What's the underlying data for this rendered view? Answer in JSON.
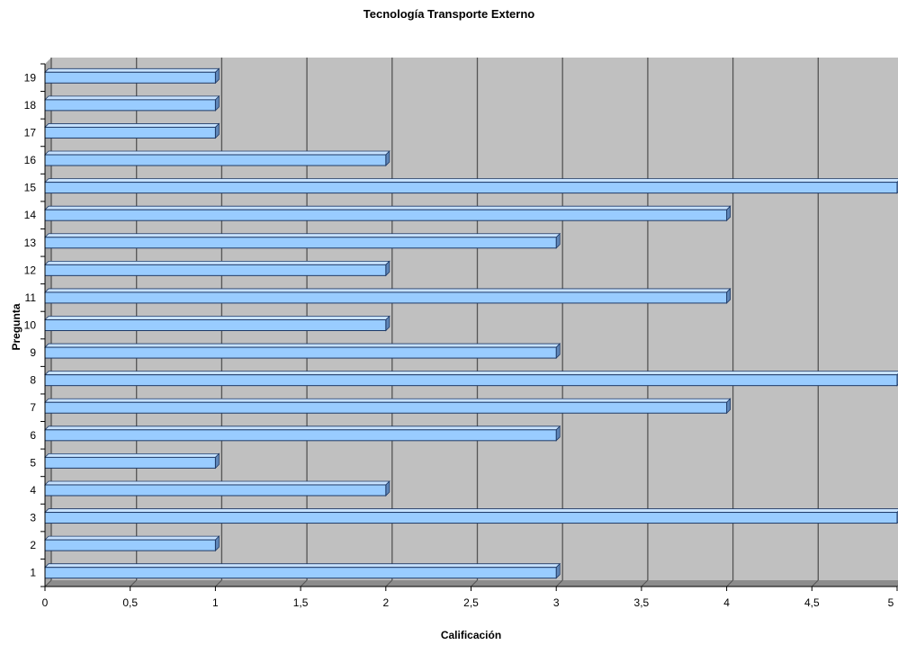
{
  "chart_data": {
    "type": "bar",
    "orientation": "horizontal",
    "three_d": true,
    "title": "Tecnología Transporte Externo",
    "xlabel": "Calificación",
    "ylabel": "Pregunta",
    "categories": [
      "1",
      "2",
      "3",
      "4",
      "5",
      "6",
      "7",
      "8",
      "9",
      "10",
      "11",
      "12",
      "13",
      "14",
      "15",
      "16",
      "17",
      "18",
      "19"
    ],
    "series": [
      {
        "values": [
          3,
          1,
          5,
          2,
          1,
          3,
          4,
          5,
          3,
          2,
          4,
          2,
          3,
          4,
          5,
          2,
          1,
          1,
          1
        ]
      }
    ],
    "xlim": [
      0,
      5
    ],
    "x_ticks": [
      "0",
      "0,5",
      "1",
      "1,5",
      "2",
      "2,5",
      "3",
      "3,5",
      "4",
      "4,5",
      "5"
    ],
    "grid": true,
    "legend": "none",
    "colors": {
      "bar_face": "#99ccff",
      "bar_edge": "#1f3a66",
      "bar_side": "#5f86b8",
      "plot_background": "#c0c0c0",
      "floor": "#8c8c8c",
      "gridline": "#555555"
    }
  }
}
